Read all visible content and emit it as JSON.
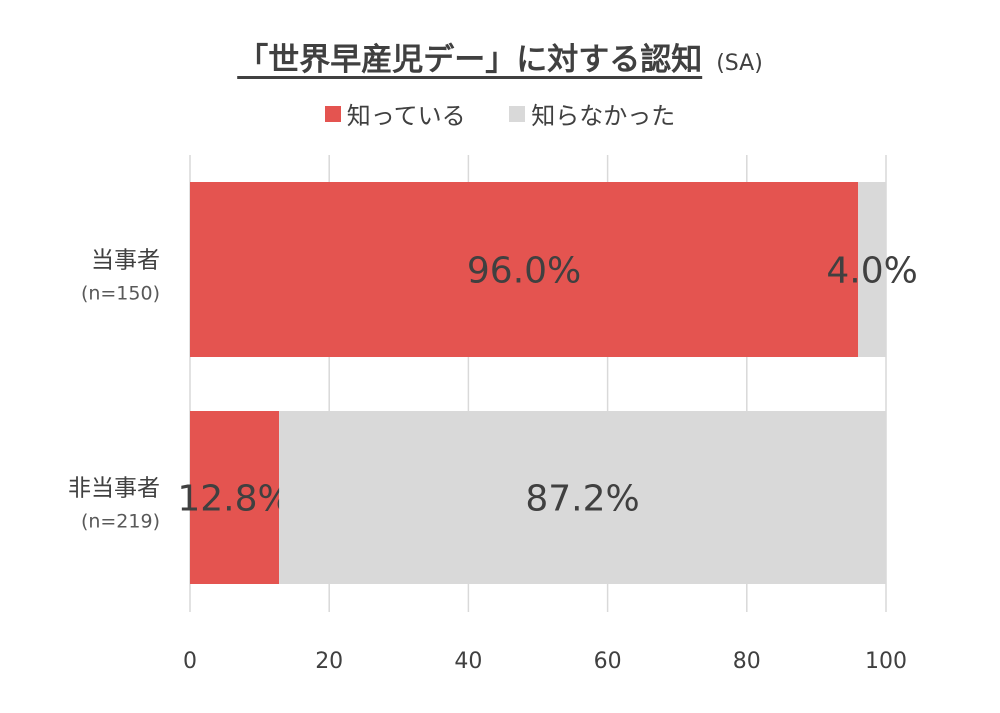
{
  "chart_data": {
    "type": "bar",
    "orientation": "horizontal",
    "stacked": true,
    "title": "「世界早産児デー」に対する認知",
    "subtitle": "(SA)",
    "categories": [
      {
        "label": "当事者",
        "n": "(n=150)"
      },
      {
        "label": "非当事者",
        "n": "(n=219)"
      }
    ],
    "series": [
      {
        "name": "知っている",
        "color": "#E45450",
        "values": [
          96.0,
          12.8
        ],
        "labels": [
          "96.0%",
          "12.8%"
        ]
      },
      {
        "name": "知らなかった",
        "color": "#D9D9D9",
        "values": [
          4.0,
          87.2
        ],
        "labels": [
          "4.0%",
          "87.2%"
        ]
      }
    ],
    "xlim": [
      0,
      100
    ],
    "xticks": [
      "0",
      "20",
      "40",
      "60",
      "80",
      "100"
    ],
    "grid": true,
    "legend": "top"
  }
}
